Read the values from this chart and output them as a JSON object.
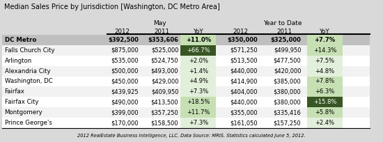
{
  "title": "Median Sales Price by Jurisdiction [Washington, DC Metro Area]",
  "footer": "2012 RealEstate Business Intelligence, LLC. Data Source: MRIS. Statistics calculated June 5, 2012.",
  "col_groups": [
    "May",
    "Year to Date"
  ],
  "col_headers": [
    "2012",
    "2011",
    "YoY",
    "2012",
    "2011",
    "YoY"
  ],
  "rows": [
    {
      "label": "DC Metro",
      "bold": true,
      "values": [
        "$392,500",
        "$353,606",
        "+11.0%",
        "$350,000",
        "$325,000",
        "+7.7%"
      ],
      "yoy_colors": [
        "#c6e0b4",
        "#c6e0b4"
      ]
    },
    {
      "label": "Falls Church City",
      "bold": false,
      "values": [
        "$875,000",
        "$525,000",
        "+66.7%",
        "$571,250",
        "$499,950",
        "+14.3%"
      ],
      "yoy_colors": [
        "#375623",
        "#c6e0b4"
      ]
    },
    {
      "label": "Arlington",
      "bold": false,
      "values": [
        "$535,000",
        "$524,750",
        "+2.0%",
        "$513,500",
        "$477,500",
        "+7.5%"
      ],
      "yoy_colors": [
        "#e2efda",
        "#e2efda"
      ]
    },
    {
      "label": "Alexandria City",
      "bold": false,
      "values": [
        "$500,000",
        "$493,000",
        "+1.4%",
        "$440,000",
        "$420,000",
        "+4.8%"
      ],
      "yoy_colors": [
        "#e2efda",
        "#e2efda"
      ]
    },
    {
      "label": "Washington, DC",
      "bold": false,
      "values": [
        "$450,000",
        "$429,000",
        "+4.9%",
        "$414,900",
        "$385,000",
        "+7.8%"
      ],
      "yoy_colors": [
        "#e2efda",
        "#c6e0b4"
      ]
    },
    {
      "label": "Fairfax",
      "bold": false,
      "values": [
        "$439,925",
        "$409,950",
        "+7.3%",
        "$404,000",
        "$380,000",
        "+6.3%"
      ],
      "yoy_colors": [
        "#e2efda",
        "#c6e0b4"
      ]
    },
    {
      "label": "Fairfax City",
      "bold": false,
      "values": [
        "$490,000",
        "$413,500",
        "+18.5%",
        "$440,000",
        "$380,000",
        "+15.8%"
      ],
      "yoy_colors": [
        "#c6e0b4",
        "#375623"
      ]
    },
    {
      "label": "Montgomery",
      "bold": false,
      "values": [
        "$399,000",
        "$357,250",
        "+11.7%",
        "$355,000",
        "$335,416",
        "+5.8%"
      ],
      "yoy_colors": [
        "#c6e0b4",
        "#c6e0b4"
      ]
    },
    {
      "label": "Prince George's",
      "bold": false,
      "values": [
        "$170,000",
        "$158,500",
        "+7.3%",
        "$161,050",
        "$157,250",
        "+2.4%"
      ],
      "yoy_colors": [
        "#e2efda",
        "#e2efda"
      ]
    }
  ],
  "bg_color": "#d9d9d9",
  "bold_row_bg": "#bfbfbf",
  "row_bg_even": "#ffffff",
  "row_bg_odd": "#f2f2f2"
}
